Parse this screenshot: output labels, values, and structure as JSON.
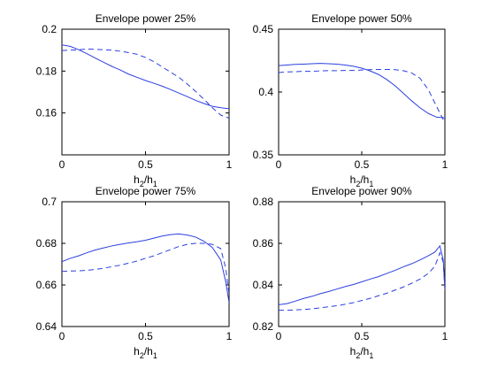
{
  "chart_data": [
    {
      "type": "line",
      "title": "Envelope power 25%",
      "xlabel": "h2/h1",
      "xlabel_parts": {
        "h": "h",
        "sub_num": "2",
        "sep": "/",
        "sub_den": "1"
      },
      "xlim": [
        0,
        1
      ],
      "ylim": [
        0.14,
        0.2
      ],
      "xticks": [
        0,
        0.5,
        1
      ],
      "xtick_labels": [
        "0",
        "0.5",
        "1"
      ],
      "yticks": [
        0.16,
        0.18,
        0.2
      ],
      "ytick_labels": [
        "0.16",
        "0.18",
        "0.2"
      ],
      "grid": false,
      "series": [
        {
          "style": "solid",
          "color": "#2b3fe0",
          "x": [
            0,
            0.05,
            0.1,
            0.15,
            0.2,
            0.25,
            0.3,
            0.35,
            0.4,
            0.45,
            0.5,
            0.55,
            0.6,
            0.65,
            0.7,
            0.75,
            0.8,
            0.85,
            0.9,
            0.95,
            1.0
          ],
          "y": [
            0.1925,
            0.1918,
            0.1902,
            0.1883,
            0.1862,
            0.1842,
            0.1822,
            0.1805,
            0.1785,
            0.177,
            0.1755,
            0.1742,
            0.1728,
            0.1712,
            0.1695,
            0.1678,
            0.166,
            0.1645,
            0.1632,
            0.1625,
            0.162
          ]
        },
        {
          "style": "dashed",
          "color": "#2b3fe0",
          "x": [
            0,
            0.05,
            0.1,
            0.15,
            0.2,
            0.25,
            0.3,
            0.35,
            0.4,
            0.45,
            0.5,
            0.55,
            0.6,
            0.65,
            0.7,
            0.75,
            0.8,
            0.85,
            0.9,
            0.95,
            1.0
          ],
          "y": [
            0.1898,
            0.19,
            0.1902,
            0.1905,
            0.1904,
            0.1902,
            0.19,
            0.1895,
            0.1888,
            0.188,
            0.1865,
            0.1845,
            0.182,
            0.1795,
            0.177,
            0.1738,
            0.1703,
            0.1665,
            0.1625,
            0.159,
            0.1575
          ]
        }
      ]
    },
    {
      "type": "line",
      "title": "Envelope power 50%",
      "xlabel": "h2/h1",
      "xlabel_parts": {
        "h": "h",
        "sub_num": "2",
        "sep": "/",
        "sub_den": "1"
      },
      "xlim": [
        0,
        1
      ],
      "ylim": [
        0.35,
        0.45
      ],
      "xticks": [
        0,
        0.5,
        1
      ],
      "xtick_labels": [
        "0",
        "0.5",
        "1"
      ],
      "yticks": [
        0.35,
        0.4,
        0.45
      ],
      "ytick_labels": [
        "0.35",
        "0.4",
        "0.45"
      ],
      "grid": false,
      "series": [
        {
          "style": "solid",
          "color": "#2b3fe0",
          "x": [
            0,
            0.05,
            0.1,
            0.15,
            0.2,
            0.25,
            0.3,
            0.35,
            0.4,
            0.45,
            0.5,
            0.55,
            0.6,
            0.65,
            0.7,
            0.75,
            0.8,
            0.85,
            0.9,
            0.95,
            1.0
          ],
          "y": [
            0.421,
            0.4215,
            0.422,
            0.4222,
            0.4225,
            0.4228,
            0.4225,
            0.4222,
            0.4215,
            0.4205,
            0.419,
            0.4168,
            0.414,
            0.41,
            0.405,
            0.399,
            0.393,
            0.3875,
            0.383,
            0.38,
            0.3795
          ]
        },
        {
          "style": "dashed",
          "color": "#2b3fe0",
          "x": [
            0,
            0.05,
            0.1,
            0.15,
            0.2,
            0.25,
            0.3,
            0.35,
            0.4,
            0.45,
            0.5,
            0.55,
            0.6,
            0.65,
            0.7,
            0.75,
            0.8,
            0.85,
            0.9,
            0.95,
            1.0
          ],
          "y": [
            0.4155,
            0.416,
            0.4162,
            0.4165,
            0.4165,
            0.4168,
            0.417,
            0.417,
            0.4172,
            0.4172,
            0.4175,
            0.4178,
            0.418,
            0.418,
            0.4178,
            0.417,
            0.4152,
            0.411,
            0.402,
            0.3885,
            0.3755
          ]
        }
      ]
    },
    {
      "type": "line",
      "title": "Envelope power 75%",
      "xlabel": "h2/h1",
      "xlabel_parts": {
        "h": "h",
        "sub_num": "2",
        "sep": "/",
        "sub_den": "1"
      },
      "xlim": [
        0,
        1
      ],
      "ylim": [
        0.64,
        0.7
      ],
      "xticks": [
        0,
        0.5,
        1
      ],
      "xtick_labels": [
        "0",
        "0.5",
        "1"
      ],
      "yticks": [
        0.64,
        0.66,
        0.68,
        0.7
      ],
      "ytick_labels": [
        "0.64",
        "0.66",
        "0.68",
        "0.7"
      ],
      "grid": false,
      "series": [
        {
          "style": "solid",
          "color": "#2b3fe0",
          "x": [
            0,
            0.05,
            0.1,
            0.15,
            0.2,
            0.25,
            0.3,
            0.35,
            0.4,
            0.45,
            0.5,
            0.55,
            0.6,
            0.65,
            0.7,
            0.75,
            0.8,
            0.85,
            0.9,
            0.95,
            0.98,
            1.0
          ],
          "y": [
            0.6712,
            0.6728,
            0.674,
            0.6755,
            0.6768,
            0.6778,
            0.6788,
            0.6795,
            0.6802,
            0.6808,
            0.6815,
            0.6825,
            0.6835,
            0.6842,
            0.6845,
            0.684,
            0.683,
            0.681,
            0.678,
            0.672,
            0.6615,
            0.6515
          ]
        },
        {
          "style": "dashed",
          "color": "#2b3fe0",
          "x": [
            0,
            0.05,
            0.1,
            0.15,
            0.2,
            0.25,
            0.3,
            0.35,
            0.4,
            0.45,
            0.5,
            0.55,
            0.6,
            0.65,
            0.7,
            0.75,
            0.8,
            0.85,
            0.9,
            0.95,
            0.98,
            1.0
          ],
          "y": [
            0.6665,
            0.6667,
            0.6668,
            0.667,
            0.6675,
            0.668,
            0.6688,
            0.6695,
            0.6705,
            0.6715,
            0.6728,
            0.674,
            0.6755,
            0.677,
            0.6785,
            0.6795,
            0.68,
            0.68,
            0.6795,
            0.6775,
            0.668,
            0.6555
          ]
        }
      ]
    },
    {
      "type": "line",
      "title": "Envelope power 90%",
      "xlabel": "h2/h1",
      "xlabel_parts": {
        "h": "h",
        "sub_num": "2",
        "sep": "/",
        "sub_den": "1"
      },
      "xlim": [
        0,
        1
      ],
      "ylim": [
        0.82,
        0.88
      ],
      "xticks": [
        0,
        0.5,
        1
      ],
      "xtick_labels": [
        "0",
        "0.5",
        "1"
      ],
      "yticks": [
        0.82,
        0.84,
        0.86,
        0.88
      ],
      "ytick_labels": [
        "0.82",
        "0.84",
        "0.86",
        "0.88"
      ],
      "grid": false,
      "series": [
        {
          "style": "solid",
          "color": "#2b3fe0",
          "x": [
            0,
            0.05,
            0.1,
            0.15,
            0.2,
            0.25,
            0.3,
            0.35,
            0.4,
            0.45,
            0.5,
            0.55,
            0.6,
            0.65,
            0.7,
            0.75,
            0.8,
            0.85,
            0.9,
            0.94,
            0.97,
            0.99,
            1.0
          ],
          "y": [
            0.8305,
            0.831,
            0.8322,
            0.8335,
            0.8345,
            0.8358,
            0.8368,
            0.838,
            0.8392,
            0.8402,
            0.8415,
            0.8428,
            0.844,
            0.8455,
            0.847,
            0.8487,
            0.8502,
            0.852,
            0.854,
            0.8558,
            0.8588,
            0.852,
            0.8375
          ]
        },
        {
          "style": "dashed",
          "color": "#2b3fe0",
          "x": [
            0,
            0.05,
            0.1,
            0.15,
            0.2,
            0.25,
            0.3,
            0.35,
            0.4,
            0.45,
            0.5,
            0.55,
            0.6,
            0.65,
            0.7,
            0.75,
            0.8,
            0.85,
            0.9,
            0.94,
            0.97,
            0.99,
            1.0
          ],
          "y": [
            0.8278,
            0.8278,
            0.828,
            0.8282,
            0.8285,
            0.829,
            0.8295,
            0.83,
            0.8307,
            0.8315,
            0.8325,
            0.8335,
            0.8348,
            0.836,
            0.8375,
            0.839,
            0.8408,
            0.8428,
            0.8455,
            0.849,
            0.8555,
            0.851,
            0.8385
          ]
        }
      ]
    }
  ]
}
